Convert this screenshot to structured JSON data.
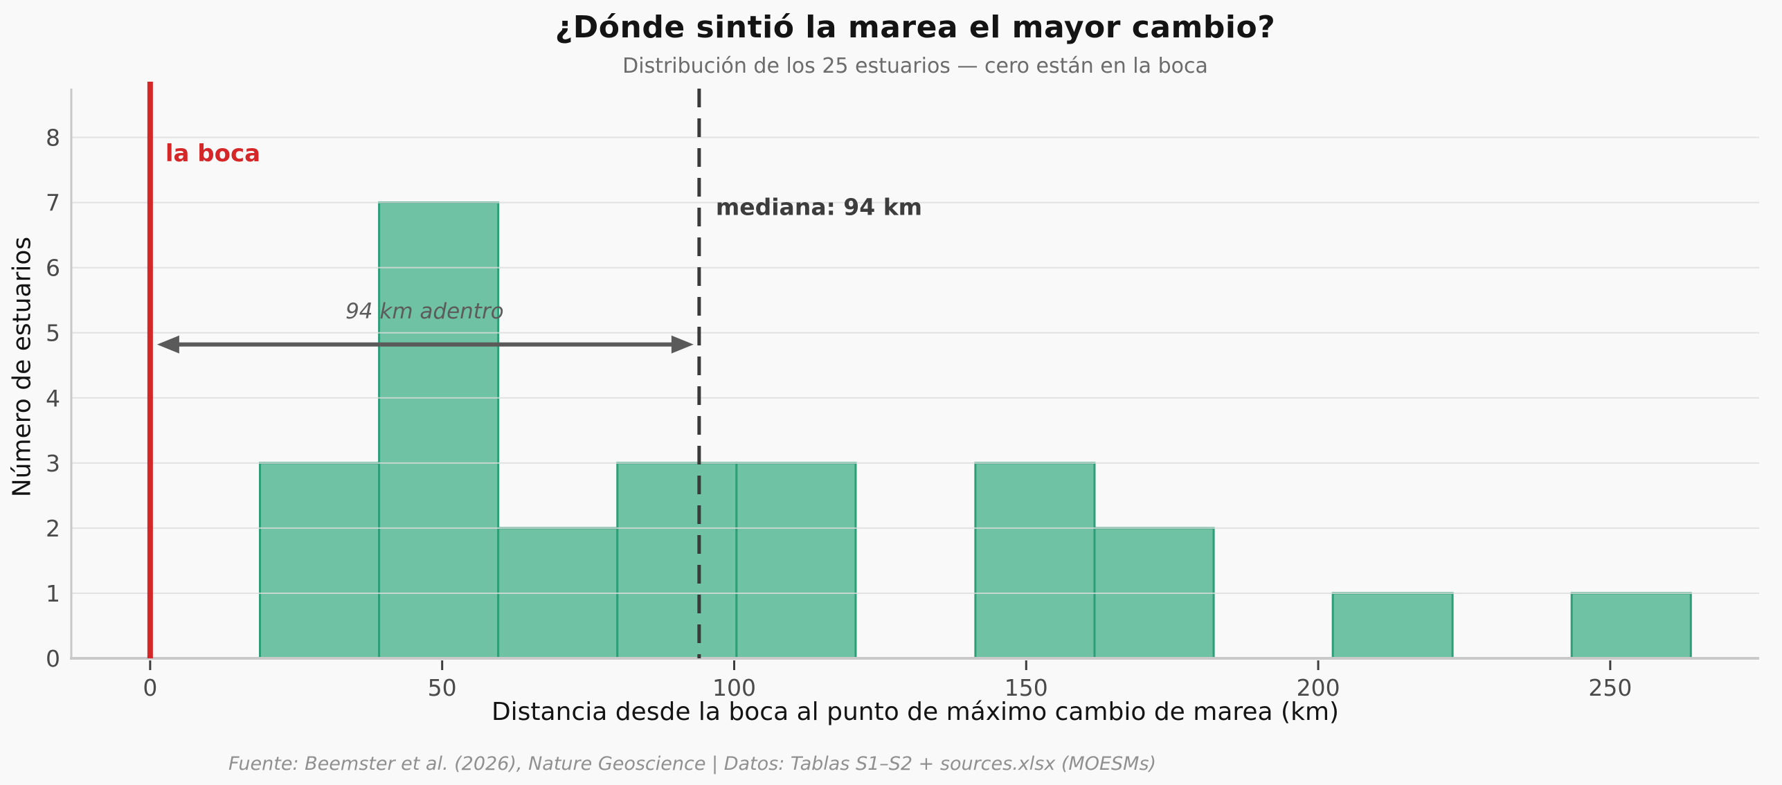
{
  "header": {
    "title": "¿Dónde sintió la marea el mayor cambio?",
    "subtitle": "Distribución de los 25 estuarios — cero están en la boca"
  },
  "chart_data": {
    "type": "histogram",
    "title": "¿Dónde sintió la marea el mayor cambio?",
    "subtitle": "Distribución de los 25 estuarios — cero están en la boca",
    "xlabel": "Distancia desde la boca al punto de máximo cambio de marea (km)",
    "ylabel": "Número de estuarios",
    "n_estuaries": 25,
    "bin_edges": [
      18.8,
      39.2,
      59.6,
      80.0,
      100.4,
      120.8,
      141.3,
      161.7,
      182.1,
      202.5,
      223.0,
      243.4,
      263.8
    ],
    "counts": [
      3,
      7,
      2,
      3,
      3,
      0,
      3,
      2,
      0,
      1,
      0,
      1
    ],
    "xlim": [
      -13.5,
      275.5
    ],
    "ylim": [
      0,
      8.75
    ],
    "xticks": [
      0,
      50,
      100,
      150,
      200,
      250
    ],
    "yticks": [
      0,
      1,
      2,
      3,
      4,
      5,
      6,
      7,
      8
    ],
    "grid": "horizontal",
    "legend": "none",
    "colors": {
      "background": "#f9f9f9",
      "bar_fill": "#6fc2a4",
      "bar_edge": "#2d9e78",
      "grid": "#dcdcdc",
      "spine": "#c9c9c9",
      "tick_label": "#4a4a4a",
      "mouth_line": "#d62728",
      "median_line": "#3a3a3a",
      "arrow": "#5a5a5a"
    },
    "annotations": {
      "mouth_line": {
        "x": 0,
        "label": "la boca"
      },
      "median_line": {
        "x": 94,
        "label": "mediana: 94 km"
      },
      "arrow": {
        "from_x": 0,
        "to_x": 94,
        "label": "94 km adentro"
      }
    }
  },
  "footer": {
    "source": "Fuente: Beemster et al. (2026), Nature Geoscience | Datos: Tablas S1–S2 + sources.xlsx (MOESMs)"
  }
}
